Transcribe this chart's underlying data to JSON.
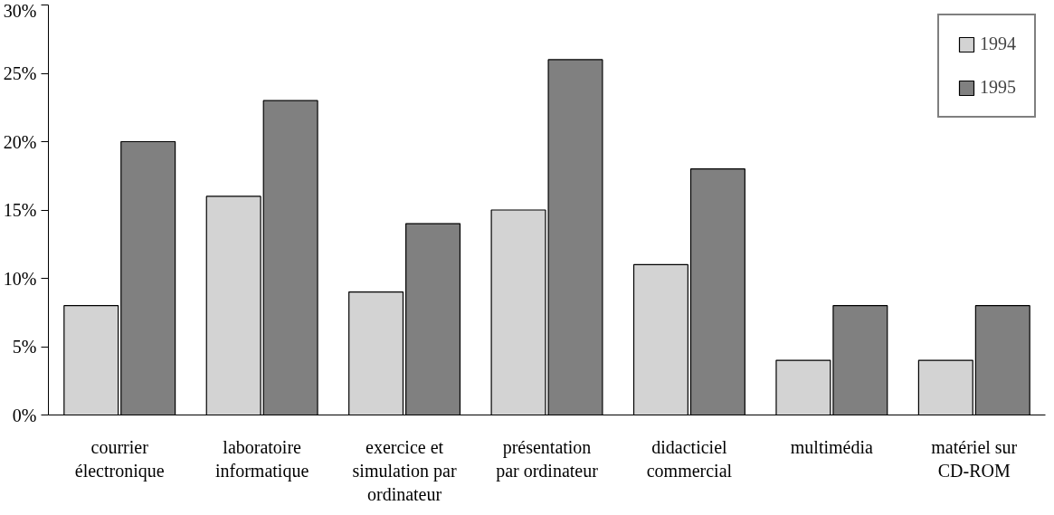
{
  "chart_data": {
    "type": "bar",
    "categories": [
      "courrier électronique",
      "laboratoire informatique",
      "exercice et simulation par ordinateur",
      "présentation par ordinateur",
      "didacticiel commercial",
      "multimédia",
      "matériel sur CD-ROM"
    ],
    "series": [
      {
        "name": "1994",
        "color": "#d3d3d3",
        "values": [
          8,
          16,
          9,
          15,
          11,
          4,
          4
        ]
      },
      {
        "name": "1995",
        "color": "#808080",
        "values": [
          20,
          23,
          14,
          26,
          18,
          8,
          8
        ]
      }
    ],
    "ylim": [
      0,
      30
    ],
    "yticks": [
      {
        "value": 0,
        "label": "0%"
      },
      {
        "value": 5,
        "label": "5%"
      },
      {
        "value": 10,
        "label": "10%"
      },
      {
        "value": 15,
        "label": "15%"
      },
      {
        "value": 20,
        "label": "20%"
      },
      {
        "value": 25,
        "label": "25%"
      },
      {
        "value": 30,
        "label": "30%"
      }
    ],
    "grid": false,
    "legend": "top right"
  }
}
